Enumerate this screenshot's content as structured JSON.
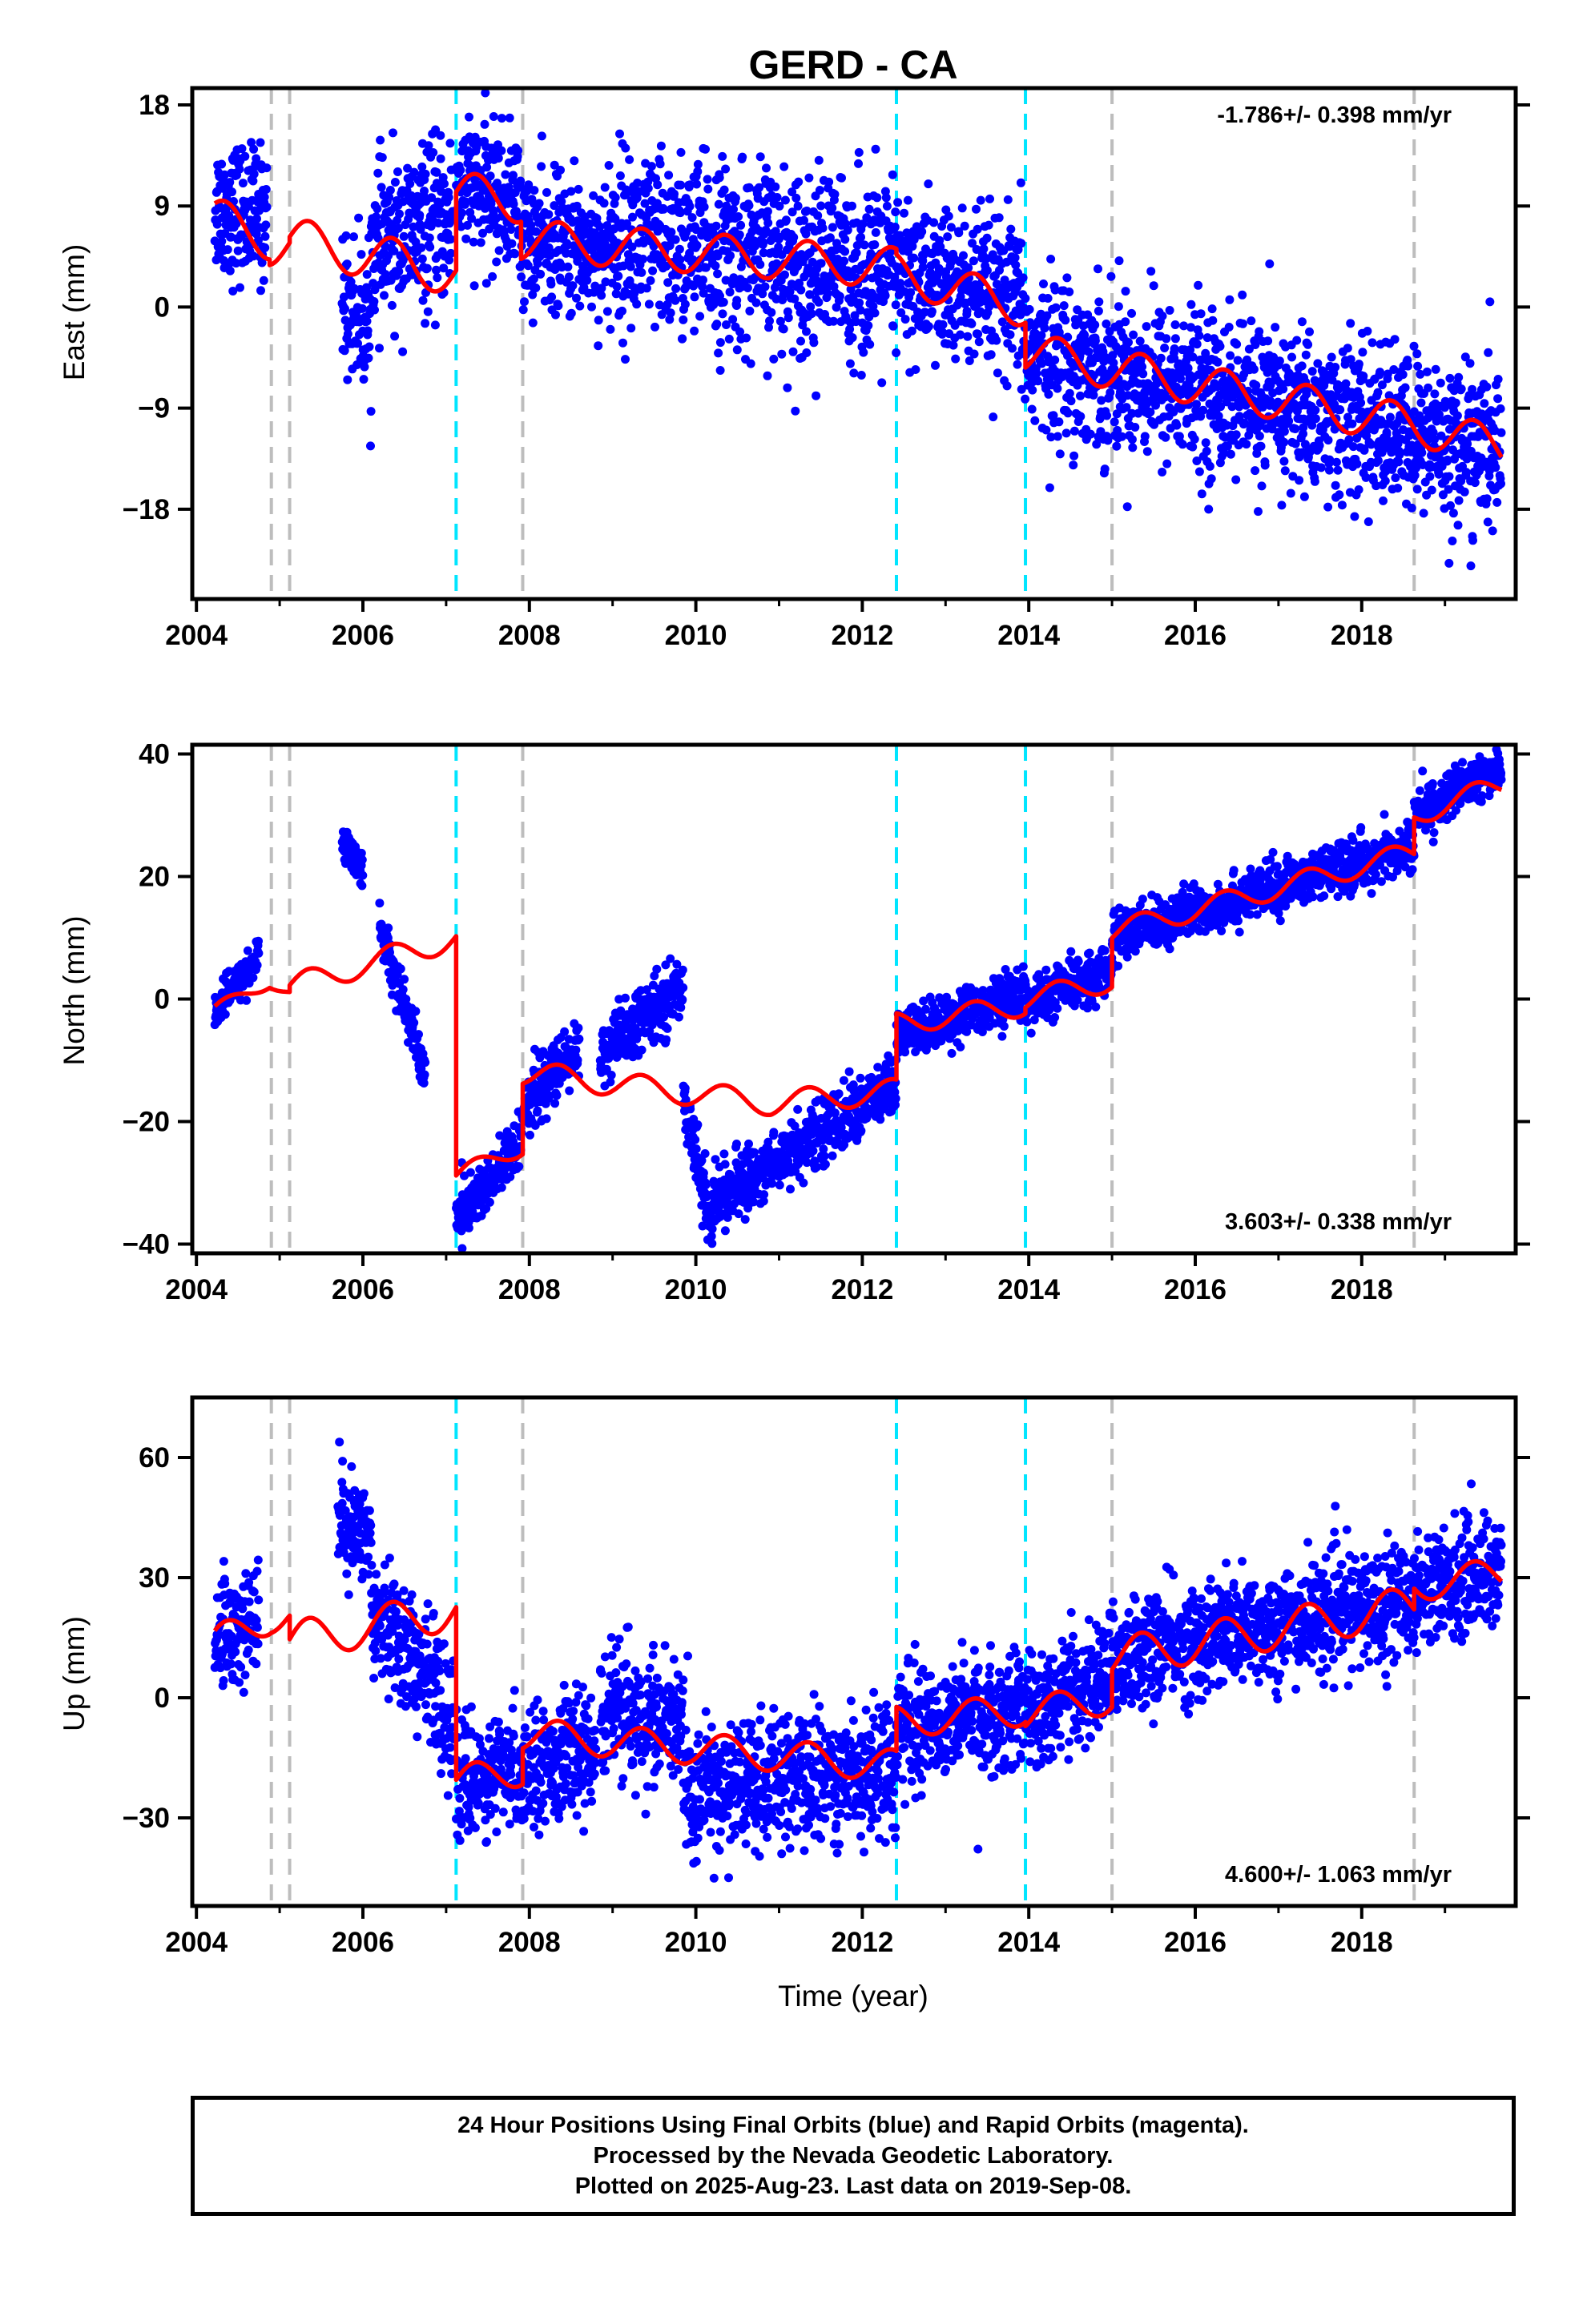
{
  "chart_data": [
    {
      "type": "scatter",
      "title": "GERD - CA",
      "ylabel": "East (mm)",
      "ylim": [
        -26,
        19.5
      ],
      "yticks": [
        18,
        9,
        0,
        -9,
        -18
      ],
      "yticklabels": [
        "18",
        "9",
        "0",
        "−9",
        "−18"
      ],
      "xlim": [
        2003.95,
        2019.85
      ],
      "xticks": [
        2004,
        2006,
        2008,
        2010,
        2012,
        2014,
        2016,
        2018
      ],
      "rate_label": "-1.786+/- 0.398 mm/yr",
      "rate_position": "top-right",
      "series": [
        {
          "color": "#0000ff",
          "segments": [
            {
              "x": [
                2004.22,
                2004.85
              ],
              "center": [
                9,
                8
              ],
              "noise": 3
            },
            {
              "x": [
                2005.75,
                2006.1
              ],
              "center": [
                1,
                -2
              ],
              "noise": 3
            },
            {
              "x": [
                2006.1,
                2007.08
              ],
              "center": [
                5,
                8
              ],
              "noise": 3.5
            },
            {
              "x": [
                2007.12,
                2007.9
              ],
              "center": [
                11,
                9
              ],
              "noise": 3
            },
            {
              "x": [
                2007.9,
                2008.95
              ],
              "center": [
                6,
                5
              ],
              "noise": 3
            },
            {
              "x": [
                2008.95,
                2012.4
              ],
              "center": [
                6,
                3
              ],
              "noise": 4
            },
            {
              "x": [
                2012.4,
                2013.95
              ],
              "center": [
                3,
                0
              ],
              "noise": 3.5
            },
            {
              "x": [
                2013.95,
                2019.68
              ],
              "center": [
                -4,
                -13
              ],
              "noise": 3.5
            }
          ]
        },
        {
          "color": "#ff0000",
          "model": "trend + annual",
          "segments": [
            {
              "x": [
                2004.22,
                2004.88
              ],
              "center": [
                8,
                6
              ],
              "amp": 1.8
            },
            {
              "x": [
                2004.88,
                2005.12
              ],
              "center": [
                5.5,
                5.5
              ],
              "amp": 1.8
            },
            {
              "x": [
                2005.12,
                2007.12
              ],
              "center": [
                6,
                3
              ],
              "amp": 2
            },
            {
              "x": [
                2007.12,
                2007.9
              ],
              "center": [
                10,
                9.5
              ],
              "amp": 2
            },
            {
              "x": [
                2007.9,
                2012.41
              ],
              "center": [
                6,
                3.5
              ],
              "amp": 1.8
            },
            {
              "x": [
                2012.41,
                2013.96
              ],
              "center": [
                3,
                0
              ],
              "amp": 1.8
            },
            {
              "x": [
                2013.96,
                2015.0
              ],
              "center": [
                -4,
                -5.5
              ],
              "amp": 1.8
            },
            {
              "x": [
                2015.0,
                2018.63
              ],
              "center": [
                -5.5,
                -10.5
              ],
              "amp": 1.8
            },
            {
              "x": [
                2018.63,
                2019.68
              ],
              "center": [
                -10.5,
                -12.5
              ],
              "amp": 1.8
            }
          ]
        }
      ],
      "event_lines": {
        "cyan": [
          2007.12,
          2012.41,
          2013.96
        ],
        "gray": [
          2004.9,
          2005.12,
          2007.92,
          2015.0,
          2018.63
        ]
      }
    },
    {
      "type": "scatter",
      "ylabel": "North (mm)",
      "ylim": [
        -41.5,
        41.5
      ],
      "yticks": [
        40,
        20,
        0,
        -20,
        -40
      ],
      "yticklabels": [
        "40",
        "20",
        "0",
        "−20",
        "−40"
      ],
      "xlim": [
        2003.95,
        2019.85
      ],
      "xticks": [
        2004,
        2006,
        2008,
        2010,
        2012,
        2014,
        2016,
        2018
      ],
      "rate_label": "3.603+/- 0.338 mm/yr",
      "rate_position": "bottom-right",
      "series": [
        {
          "color": "#0000ff",
          "segments": [
            {
              "x": [
                2004.22,
                2004.75
              ],
              "center": [
                -2,
                7
              ],
              "noise": 1.5
            },
            {
              "x": [
                2005.75,
                2006.0
              ],
              "center": [
                26,
                21
              ],
              "noise": 1.5
            },
            {
              "x": [
                2006.2,
                2006.75
              ],
              "center": [
                12,
                -12
              ],
              "noise": 2
            },
            {
              "x": [
                2007.12,
                2007.9
              ],
              "center": [
                -36,
                -24
              ],
              "noise": 2.5
            },
            {
              "x": [
                2007.9,
                2008.6
              ],
              "center": [
                -18,
                -8
              ],
              "noise": 2.5
            },
            {
              "x": [
                2008.85,
                2009.85
              ],
              "center": [
                -9,
                2
              ],
              "noise": 2.5
            },
            {
              "x": [
                2009.85,
                2010.2
              ],
              "center": [
                -15,
                -38
              ],
              "noise": 2.5
            },
            {
              "x": [
                2010.2,
                2012.41
              ],
              "center": [
                -33,
                -14
              ],
              "noise": 2.5
            },
            {
              "x": [
                2012.41,
                2013.96
              ],
              "center": [
                -6,
                1
              ],
              "noise": 2
            },
            {
              "x": [
                2013.96,
                2015.0
              ],
              "center": [
                -1,
                5
              ],
              "noise": 2
            },
            {
              "x": [
                2015.0,
                2018.63
              ],
              "center": [
                10,
                25
              ],
              "noise": 2
            },
            {
              "x": [
                2018.63,
                2019.68
              ],
              "center": [
                30,
                38
              ],
              "noise": 1.8
            }
          ]
        },
        {
          "color": "#ff0000",
          "model": "trend + annual",
          "segments": [
            {
              "x": [
                2004.22,
                2004.88
              ],
              "center": [
                -2,
                3
              ],
              "amp": 1.2
            },
            {
              "x": [
                2004.88,
                2005.12
              ],
              "center": [
                3,
                1
              ],
              "amp": 1.2
            },
            {
              "x": [
                2005.12,
                2007.12
              ],
              "center": [
                2,
                10
              ],
              "amp": 2
            },
            {
              "x": [
                2007.12,
                2007.92
              ],
              "center": [
                -29,
                -24
              ],
              "amp": 1.5
            },
            {
              "x": [
                2007.92,
                2010.9
              ],
              "center": [
                -12,
                -17
              ],
              "amp": 2
            },
            {
              "x": [
                2010.9,
                2012.41
              ],
              "center": [
                -17,
                -15
              ],
              "amp": 2
            },
            {
              "x": [
                2012.41,
                2013.96
              ],
              "center": [
                -4,
                -1
              ],
              "amp": 1.8
            },
            {
              "x": [
                2013.96,
                2015.0
              ],
              "center": [
                0,
                3
              ],
              "amp": 1.8
            },
            {
              "x": [
                2015.0,
                2018.63
              ],
              "center": [
                11,
                24
              ],
              "amp": 1.8
            },
            {
              "x": [
                2018.63,
                2019.68
              ],
              "center": [
                30,
                35
              ],
              "amp": 1.8
            }
          ]
        }
      ],
      "event_lines": {
        "cyan": [
          2007.12,
          2012.41,
          2013.96
        ],
        "gray": [
          2004.9,
          2005.12,
          2007.92,
          2015.0,
          2018.63
        ]
      }
    },
    {
      "type": "scatter",
      "ylabel": "Up (mm)",
      "ylim": [
        -52,
        75
      ],
      "yticks": [
        60,
        30,
        0,
        -30
      ],
      "yticklabels": [
        "60",
        "30",
        "0",
        "−30"
      ],
      "xlim": [
        2003.95,
        2019.85
      ],
      "xticks": [
        2004,
        2006,
        2008,
        2010,
        2012,
        2014,
        2016,
        2018
      ],
      "xlabel": "Time (year)",
      "rate_label": "4.600+/- 1.063 mm/yr",
      "rate_position": "bottom-right",
      "series": [
        {
          "color": "#0000ff",
          "segments": [
            {
              "x": [
                2004.22,
                2004.75
              ],
              "center": [
                15,
                20
              ],
              "noise": 7
            },
            {
              "x": [
                2005.7,
                2006.1
              ],
              "center": [
                45,
                40
              ],
              "noise": 6
            },
            {
              "x": [
                2006.1,
                2007.1
              ],
              "center": [
                25,
                -5
              ],
              "noise": 8
            },
            {
              "x": [
                2007.12,
                2008.8
              ],
              "center": [
                -22,
                -13
              ],
              "noise": 7
            },
            {
              "x": [
                2008.85,
                2009.85
              ],
              "center": [
                -3,
                -8
              ],
              "noise": 8
            },
            {
              "x": [
                2009.85,
                2012.41
              ],
              "center": [
                -24,
                -17
              ],
              "noise": 8
            },
            {
              "x": [
                2012.41,
                2013.96
              ],
              "center": [
                -8,
                -2
              ],
              "noise": 7
            },
            {
              "x": [
                2013.96,
                2015.0
              ],
              "center": [
                -4,
                6
              ],
              "noise": 7
            },
            {
              "x": [
                2015.0,
                2018.63
              ],
              "center": [
                10,
                25
              ],
              "noise": 7
            },
            {
              "x": [
                2018.63,
                2019.68
              ],
              "center": [
                27,
                32
              ],
              "noise": 7
            }
          ]
        },
        {
          "color": "#ff0000",
          "model": "trend + annual",
          "segments": [
            {
              "x": [
                2004.22,
                2004.9
              ],
              "center": [
                14,
                20
              ],
              "amp": 4
            },
            {
              "x": [
                2004.9,
                2005.12
              ],
              "center": [
                20,
                20
              ],
              "amp": 4
            },
            {
              "x": [
                2005.12,
                2007.12
              ],
              "center": [
                14,
                22
              ],
              "amp": 5
            },
            {
              "x": [
                2007.12,
                2007.92
              ],
              "center": [
                -21,
                -18
              ],
              "amp": 4
            },
            {
              "x": [
                2007.92,
                2012.41
              ],
              "center": [
                -9,
                -17
              ],
              "amp": 4
            },
            {
              "x": [
                2012.41,
                2013.96
              ],
              "center": [
                -6,
                -3
              ],
              "amp": 4
            },
            {
              "x": [
                2013.96,
                2015.0
              ],
              "center": [
                -4,
                0
              ],
              "amp": 4
            },
            {
              "x": [
                2015.0,
                2018.63
              ],
              "center": [
                10,
                23
              ],
              "amp": 5
            },
            {
              "x": [
                2018.63,
                2019.68
              ],
              "center": [
                28,
                31
              ],
              "amp": 4
            }
          ]
        }
      ],
      "event_lines": {
        "cyan": [
          2007.12,
          2012.41,
          2013.96
        ],
        "gray": [
          2004.9,
          2005.12,
          2007.92,
          2015.0,
          2018.63
        ]
      }
    }
  ],
  "footer": {
    "line1": "24 Hour Positions Using Final Orbits (blue) and Rapid Orbits (magenta).",
    "line2": "Processed by the Nevada Geodetic Laboratory.",
    "line3": "Plotted on 2025-Aug-23. Last data on 2019-Sep-08."
  }
}
